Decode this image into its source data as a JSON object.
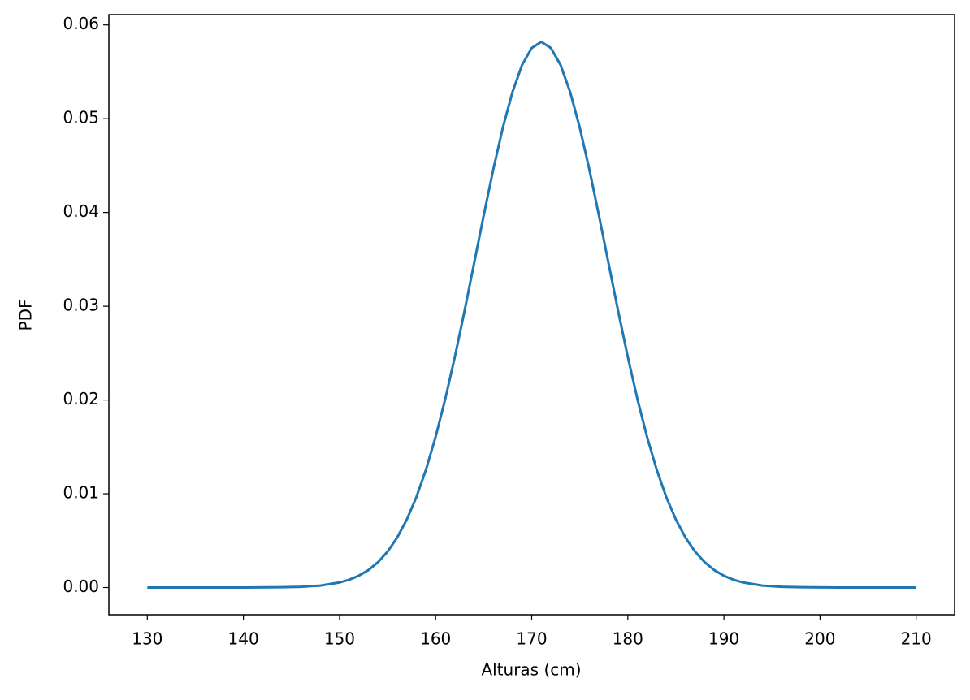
{
  "chart_data": {
    "type": "line",
    "x_label": "Alturas (cm)",
    "y_label": "PDF",
    "x": [
      130,
      135,
      140,
      144,
      146,
      148,
      150,
      151,
      152,
      153,
      154,
      155,
      156,
      157,
      158,
      159,
      160,
      161,
      162,
      163,
      164,
      165,
      166,
      167,
      168,
      169,
      170,
      171,
      172,
      173,
      174,
      175,
      176,
      177,
      178,
      179,
      180,
      181,
      182,
      183,
      184,
      185,
      186,
      187,
      188,
      189,
      190,
      191,
      192,
      194,
      196,
      198,
      202,
      206,
      210
    ],
    "series": [
      {
        "color": "#1f77b4",
        "values": [
          0,
          0,
          0,
          3e-05,
          8e-05,
          0.00021,
          0.00054,
          0.00083,
          0.00126,
          0.00186,
          0.0027,
          0.00383,
          0.00533,
          0.00725,
          0.00965,
          0.01259,
          0.01608,
          0.0201,
          0.02459,
          0.02946,
          0.03455,
          0.03966,
          0.04458,
          0.04906,
          0.05285,
          0.05574,
          0.05754,
          0.0582,
          0.05754,
          0.05574,
          0.05285,
          0.04906,
          0.04458,
          0.03966,
          0.03455,
          0.02946,
          0.02459,
          0.0201,
          0.01608,
          0.01259,
          0.00965,
          0.00725,
          0.00533,
          0.00383,
          0.0027,
          0.00186,
          0.00126,
          0.00083,
          0.00054,
          0.00021,
          8e-05,
          3e-05,
          0,
          0,
          0
        ]
      }
    ],
    "xlim": [
      126,
      214
    ],
    "ylim": [
      -0.0029,
      0.0611
    ],
    "xticks": [
      130,
      140,
      150,
      160,
      170,
      180,
      190,
      200,
      210
    ],
    "yticks": [
      {
        "value": 0,
        "label": "0.00"
      },
      0.01,
      0.02,
      0.03,
      0.04,
      0.05,
      0.06
    ],
    "grid": false
  }
}
